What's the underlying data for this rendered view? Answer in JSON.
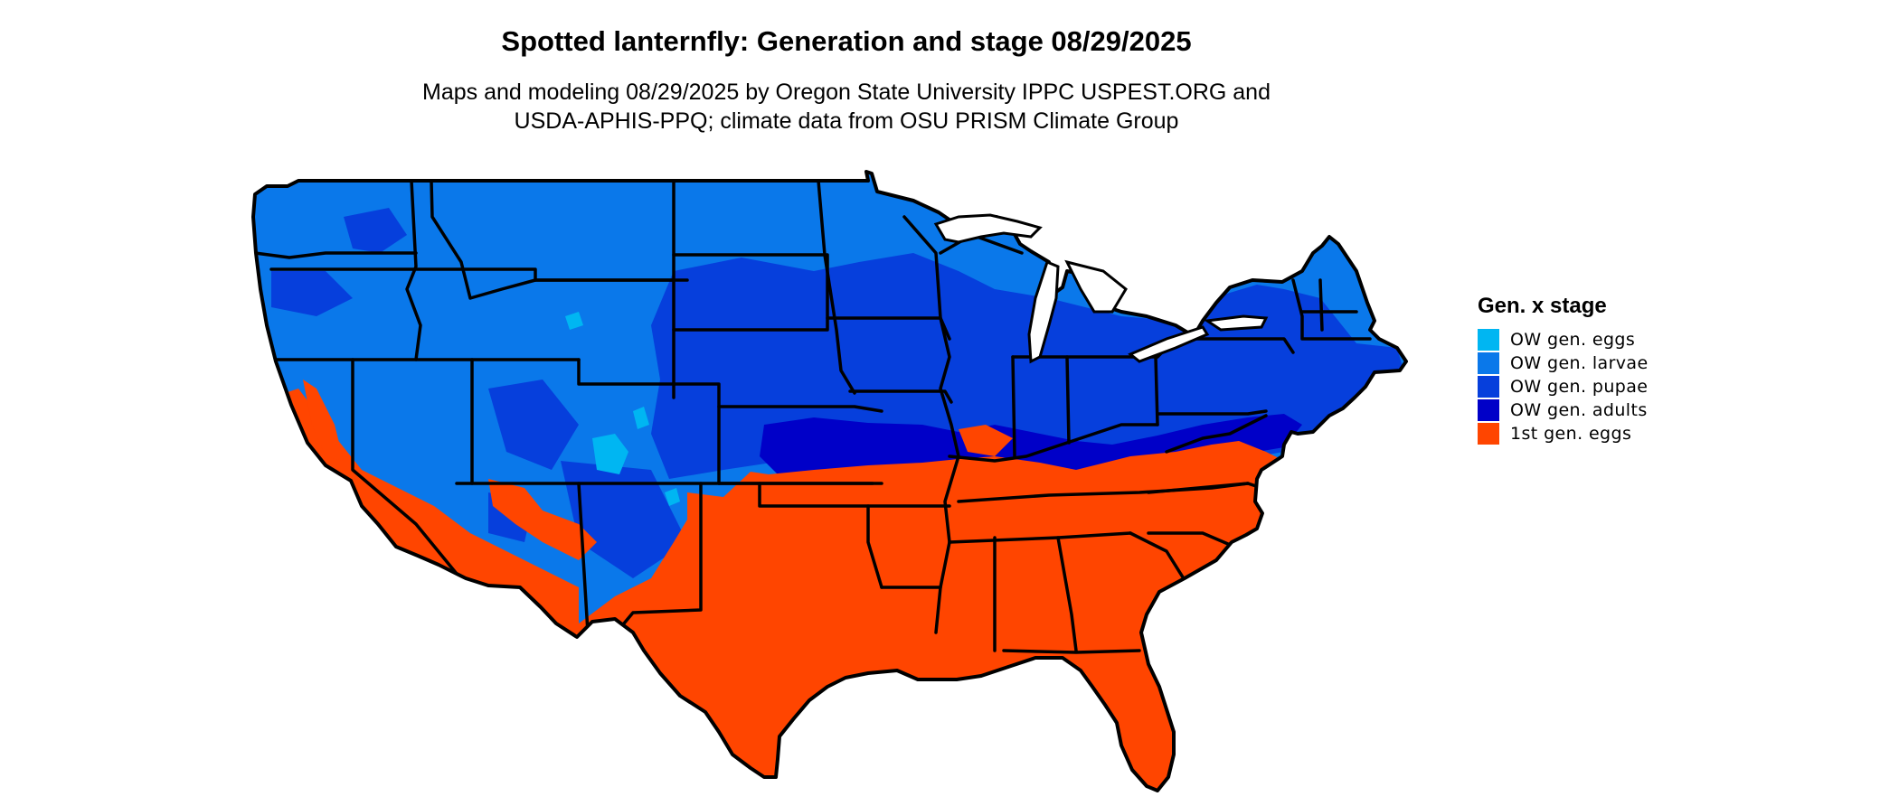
{
  "header": {
    "title": "Spotted lanternfly: Generation and stage 08/29/2025",
    "subtitle_line1": "Maps and modeling 08/29/2025 by Oregon State University IPPC USPEST.ORG and",
    "subtitle_line2": "USDA-APHIS-PPQ; climate data from OSU PRISM Climate Group"
  },
  "legend": {
    "title": "Gen. x stage",
    "items": [
      {
        "label": "OW gen. eggs",
        "color": "#00b6f2"
      },
      {
        "label": "OW gen. larvae",
        "color": "#0a78ea"
      },
      {
        "label": "OW gen. pupae",
        "color": "#063fdc"
      },
      {
        "label": "OW gen. adults",
        "color": "#0000c8"
      },
      {
        "label": "1st gen. eggs",
        "color": "#ff4500"
      }
    ]
  },
  "map": {
    "region": "Contiguous United States",
    "boundary_color": "#000000"
  }
}
